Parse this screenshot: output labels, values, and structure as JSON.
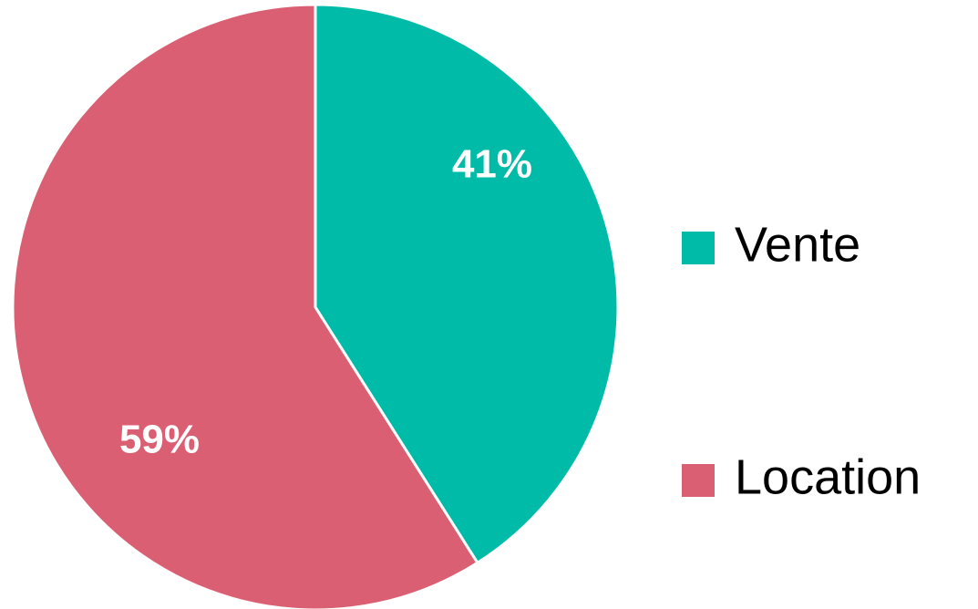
{
  "chart_data": {
    "type": "pie",
    "categories": [
      "Vente",
      "Location"
    ],
    "values": [
      41,
      59
    ],
    "value_labels": [
      "41%",
      "59%"
    ],
    "colors": [
      "#00bba7",
      "#db5f72"
    ],
    "legend": "right"
  }
}
